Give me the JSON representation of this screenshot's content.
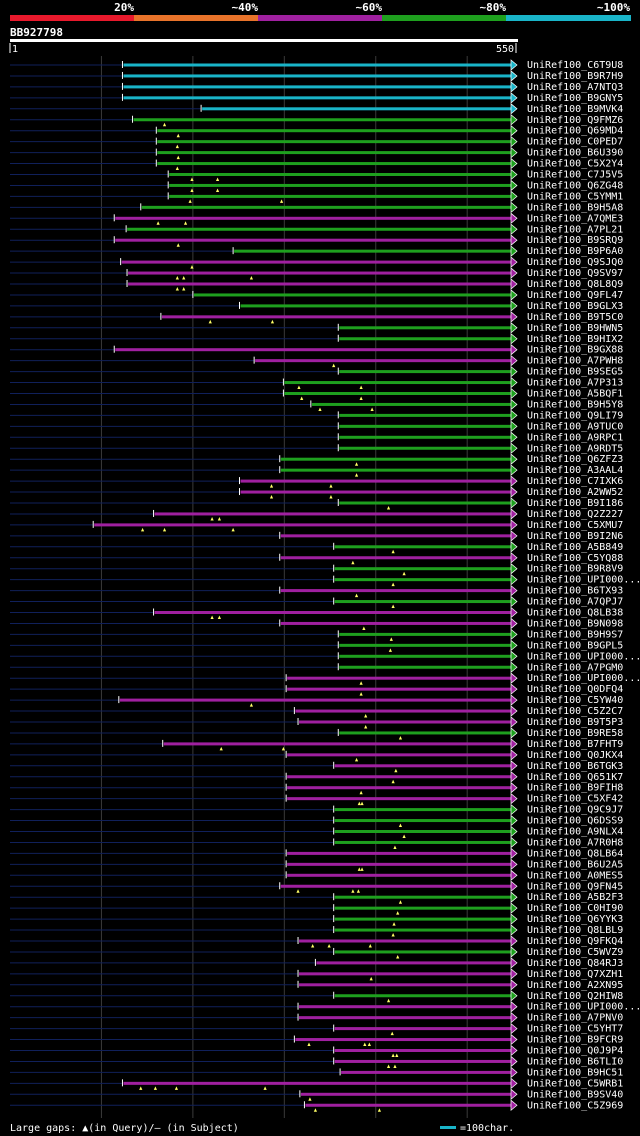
{
  "chart_data": {
    "type": "alignment-overview",
    "query_id": "BB927798",
    "query_start": "1",
    "query_end": "550",
    "query_length": 550,
    "identity_legend": [
      {
        "label": "20%",
        "color": "#e8192c"
      },
      {
        "label": "~40%",
        "color": "#e8732a"
      },
      {
        "label": "~60%",
        "color": "#a020a0"
      },
      {
        "label": "~80%",
        "color": "#1ea01e"
      },
      {
        "label": "~100%",
        "color": "#19b4c8"
      }
    ],
    "footer_legend": "Large gaps: ▲(in Query)/— (in Subject)",
    "scale_label": "=100char.",
    "hits": [
      {
        "name": "UniRef100_C6T9U8",
        "start": 124,
        "end": 550,
        "identity": "~100%",
        "gaps": []
      },
      {
        "name": "UniRef100_B9R7H9",
        "start": 124,
        "end": 550,
        "identity": "~100%",
        "gaps": []
      },
      {
        "name": "UniRef100_A7NTQ3",
        "start": 124,
        "end": 550,
        "identity": "~100%",
        "gaps": []
      },
      {
        "name": "UniRef100_B9GNY5",
        "start": 124,
        "end": 550,
        "identity": "~100%",
        "gaps": []
      },
      {
        "name": "UniRef100_B9MVK4",
        "start": 210,
        "end": 550,
        "identity": "~100%",
        "gaps": []
      },
      {
        "name": "UniRef100_Q9FMZ6",
        "start": 135,
        "end": 550,
        "identity": "~80%",
        "gaps": [
          170
        ]
      },
      {
        "name": "UniRef100_Q69MD4",
        "start": 161,
        "end": 550,
        "identity": "~80%",
        "gaps": [
          185
        ]
      },
      {
        "name": "UniRef100_C0PED7",
        "start": 161,
        "end": 550,
        "identity": "~80%",
        "gaps": [
          184
        ]
      },
      {
        "name": "UniRef100_B6U390",
        "start": 161,
        "end": 550,
        "identity": "~80%",
        "gaps": [
          185
        ]
      },
      {
        "name": "UniRef100_C5X2Y4",
        "start": 161,
        "end": 550,
        "identity": "~80%",
        "gaps": [
          184
        ]
      },
      {
        "name": "UniRef100_C7J5V5",
        "start": 174,
        "end": 550,
        "identity": "~80%",
        "gaps": [
          200,
          228
        ]
      },
      {
        "name": "UniRef100_Q6ZG48",
        "start": 174,
        "end": 550,
        "identity": "~80%",
        "gaps": [
          200,
          228
        ]
      },
      {
        "name": "UniRef100_C5YMM1",
        "start": 174,
        "end": 550,
        "identity": "~80%",
        "gaps": [
          198,
          298
        ]
      },
      {
        "name": "UniRef100_B9H5A8",
        "start": 144,
        "end": 550,
        "identity": "~80%",
        "gaps": []
      },
      {
        "name": "UniRef100_A7QME3",
        "start": 115,
        "end": 550,
        "identity": "~60%",
        "gaps": [
          163,
          193
        ]
      },
      {
        "name": "UniRef100_A7PL21",
        "start": 128,
        "end": 550,
        "identity": "~80%",
        "gaps": []
      },
      {
        "name": "UniRef100_B9SRQ9",
        "start": 115,
        "end": 550,
        "identity": "~60%",
        "gaps": [
          185
        ]
      },
      {
        "name": "UniRef100_B9P6A0",
        "start": 245,
        "end": 550,
        "identity": "~80%",
        "gaps": []
      },
      {
        "name": "UniRef100_Q9SJQ0",
        "start": 122,
        "end": 550,
        "identity": "~60%",
        "gaps": [
          200
        ]
      },
      {
        "name": "UniRef100_Q9SV97",
        "start": 129,
        "end": 550,
        "identity": "~60%",
        "gaps": [
          184,
          191,
          265
        ]
      },
      {
        "name": "UniRef100_Q8L8Q9",
        "start": 129,
        "end": 550,
        "identity": "~60%",
        "gaps": [
          184,
          191
        ]
      },
      {
        "name": "UniRef100_Q9FL47",
        "start": 201,
        "end": 550,
        "identity": "~80%",
        "gaps": []
      },
      {
        "name": "UniRef100_B9GLX3",
        "start": 252,
        "end": 550,
        "identity": "~80%",
        "gaps": []
      },
      {
        "name": "UniRef100_B9T5C0",
        "start": 166,
        "end": 550,
        "identity": "~60%",
        "gaps": [
          220,
          288
        ]
      },
      {
        "name": "UniRef100_B9HWN5",
        "start": 360,
        "end": 550,
        "identity": "~80%",
        "gaps": []
      },
      {
        "name": "UniRef100_B9HIX2",
        "start": 360,
        "end": 550,
        "identity": "~80%",
        "gaps": []
      },
      {
        "name": "UniRef100_B9GX88",
        "start": 115,
        "end": 550,
        "identity": "~60%",
        "gaps": []
      },
      {
        "name": "UniRef100_A7PWH8",
        "start": 268,
        "end": 550,
        "identity": "~60%",
        "gaps": [
          355
        ]
      },
      {
        "name": "UniRef100_B9SEG5",
        "start": 360,
        "end": 550,
        "identity": "~80%",
        "gaps": []
      },
      {
        "name": "UniRef100_A7P313",
        "start": 300,
        "end": 550,
        "identity": "~80%",
        "gaps": [
          317,
          385
        ]
      },
      {
        "name": "UniRef100_A5BQF1",
        "start": 300,
        "end": 550,
        "identity": "~80%",
        "gaps": [
          320,
          385
        ]
      },
      {
        "name": "UniRef100_B9H5Y8",
        "start": 330,
        "end": 550,
        "identity": "~80%",
        "gaps": [
          340,
          397
        ]
      },
      {
        "name": "UniRef100_Q9LI79",
        "start": 360,
        "end": 550,
        "identity": "~80%",
        "gaps": []
      },
      {
        "name": "UniRef100_A9TUC0",
        "start": 360,
        "end": 550,
        "identity": "~80%",
        "gaps": []
      },
      {
        "name": "UniRef100_A9RPC1",
        "start": 360,
        "end": 550,
        "identity": "~80%",
        "gaps": []
      },
      {
        "name": "UniRef100_A9RDT5",
        "start": 360,
        "end": 550,
        "identity": "~80%",
        "gaps": []
      },
      {
        "name": "UniRef100_Q6ZFZ3",
        "start": 296,
        "end": 550,
        "identity": "~80%",
        "gaps": [
          380
        ]
      },
      {
        "name": "UniRef100_A3AAL4",
        "start": 296,
        "end": 550,
        "identity": "~80%",
        "gaps": [
          380
        ]
      },
      {
        "name": "UniRef100_C7IXK6",
        "start": 252,
        "end": 550,
        "identity": "~60%",
        "gaps": [
          287,
          352
        ]
      },
      {
        "name": "UniRef100_A2WW52",
        "start": 252,
        "end": 550,
        "identity": "~60%",
        "gaps": [
          287,
          352
        ]
      },
      {
        "name": "UniRef100_B9I186",
        "start": 360,
        "end": 550,
        "identity": "~80%",
        "gaps": [
          415
        ]
      },
      {
        "name": "UniRef100_Q2Z227",
        "start": 158,
        "end": 550,
        "identity": "~60%",
        "gaps": [
          222,
          230
        ]
      },
      {
        "name": "UniRef100_C5XMU7",
        "start": 92,
        "end": 550,
        "identity": "~60%",
        "gaps": [
          146,
          170,
          245
        ]
      },
      {
        "name": "UniRef100_B9I2N6",
        "start": 296,
        "end": 550,
        "identity": "~60%",
        "gaps": []
      },
      {
        "name": "UniRef100_A5B849",
        "start": 355,
        "end": 550,
        "identity": "~80%",
        "gaps": [
          420
        ]
      },
      {
        "name": "UniRef100_C5YQ88",
        "start": 296,
        "end": 550,
        "identity": "~60%",
        "gaps": [
          376
        ]
      },
      {
        "name": "UniRef100_B9R8V9",
        "start": 355,
        "end": 550,
        "identity": "~80%",
        "gaps": [
          432
        ]
      },
      {
        "name": "UniRef100_UPI000...",
        "start": 355,
        "end": 550,
        "identity": "~80%",
        "gaps": [
          420
        ]
      },
      {
        "name": "UniRef100_B6TX93",
        "start": 296,
        "end": 550,
        "identity": "~60%",
        "gaps": [
          380
        ]
      },
      {
        "name": "UniRef100_A7QPJ7",
        "start": 355,
        "end": 550,
        "identity": "~80%",
        "gaps": [
          420
        ]
      },
      {
        "name": "UniRef100_Q8LB38",
        "start": 158,
        "end": 550,
        "identity": "~60%",
        "gaps": [
          222,
          230
        ]
      },
      {
        "name": "UniRef100_B9N098",
        "start": 296,
        "end": 550,
        "identity": "~60%",
        "gaps": [
          388
        ]
      },
      {
        "name": "UniRef100_B9H9S7",
        "start": 360,
        "end": 550,
        "identity": "~80%",
        "gaps": [
          418
        ]
      },
      {
        "name": "UniRef100_B9GPL5",
        "start": 360,
        "end": 550,
        "identity": "~80%",
        "gaps": [
          417
        ]
      },
      {
        "name": "UniRef100_UPI000...",
        "start": 360,
        "end": 550,
        "identity": "~80%",
        "gaps": []
      },
      {
        "name": "UniRef100_A7PGM0",
        "start": 360,
        "end": 550,
        "identity": "~80%",
        "gaps": []
      },
      {
        "name": "UniRef100_UPI000...",
        "start": 303,
        "end": 550,
        "identity": "~60%",
        "gaps": [
          385
        ]
      },
      {
        "name": "UniRef100_Q0DFQ4",
        "start": 303,
        "end": 550,
        "identity": "~60%",
        "gaps": [
          385
        ]
      },
      {
        "name": "UniRef100_C5YW40",
        "start": 120,
        "end": 550,
        "identity": "~60%",
        "gaps": [
          265
        ]
      },
      {
        "name": "UniRef100_C5Z2C7",
        "start": 312,
        "end": 550,
        "identity": "~60%",
        "gaps": [
          390
        ]
      },
      {
        "name": "UniRef100_B9T5P3",
        "start": 316,
        "end": 550,
        "identity": "~60%",
        "gaps": [
          390
        ]
      },
      {
        "name": "UniRef100_B9RE58",
        "start": 360,
        "end": 550,
        "identity": "~80%",
        "gaps": [
          428
        ]
      },
      {
        "name": "UniRef100_B7FHT9",
        "start": 168,
        "end": 550,
        "identity": "~60%",
        "gaps": [
          232,
          300
        ]
      },
      {
        "name": "UniRef100_Q0JKX4",
        "start": 303,
        "end": 550,
        "identity": "~60%",
        "gaps": [
          380
        ]
      },
      {
        "name": "UniRef100_B6TGK3",
        "start": 355,
        "end": 550,
        "identity": "~60%",
        "gaps": [
          423
        ]
      },
      {
        "name": "UniRef100_Q651K7",
        "start": 303,
        "end": 550,
        "identity": "~60%",
        "gaps": [
          420
        ]
      },
      {
        "name": "UniRef100_B9FIH8",
        "start": 303,
        "end": 550,
        "identity": "~60%",
        "gaps": [
          385
        ]
      },
      {
        "name": "UniRef100_C5XF42",
        "start": 303,
        "end": 550,
        "identity": "~60%",
        "gaps": [
          383,
          386
        ]
      },
      {
        "name": "UniRef100_Q9C9J7",
        "start": 355,
        "end": 550,
        "identity": "~80%",
        "gaps": []
      },
      {
        "name": "UniRef100_Q6DSS9",
        "start": 355,
        "end": 550,
        "identity": "~80%",
        "gaps": [
          428
        ]
      },
      {
        "name": "UniRef100_A9NLX4",
        "start": 355,
        "end": 550,
        "identity": "~80%",
        "gaps": [
          432
        ]
      },
      {
        "name": "UniRef100_A7R0H8",
        "start": 355,
        "end": 550,
        "identity": "~80%",
        "gaps": [
          422
        ]
      },
      {
        "name": "UniRef100_Q8LB64",
        "start": 303,
        "end": 550,
        "identity": "~60%",
        "gaps": []
      },
      {
        "name": "UniRef100_B6U2A5",
        "start": 303,
        "end": 550,
        "identity": "~60%",
        "gaps": [
          383,
          386
        ]
      },
      {
        "name": "UniRef100_A0MES5",
        "start": 303,
        "end": 550,
        "identity": "~60%",
        "gaps": []
      },
      {
        "name": "UniRef100_Q9FN45",
        "start": 296,
        "end": 550,
        "identity": "~60%",
        "gaps": [
          316,
          376,
          382
        ]
      },
      {
        "name": "UniRef100_A5B2F3",
        "start": 355,
        "end": 550,
        "identity": "~80%",
        "gaps": [
          428
        ]
      },
      {
        "name": "UniRef100_C0HI90",
        "start": 355,
        "end": 550,
        "identity": "~80%",
        "gaps": [
          425
        ]
      },
      {
        "name": "UniRef100_Q6YYK3",
        "start": 355,
        "end": 550,
        "identity": "~80%",
        "gaps": [
          421
        ]
      },
      {
        "name": "UniRef100_Q8LBL9",
        "start": 355,
        "end": 550,
        "identity": "~80%",
        "gaps": [
          420
        ]
      },
      {
        "name": "UniRef100_Q9FKQ4",
        "start": 316,
        "end": 550,
        "identity": "~60%",
        "gaps": [
          332,
          350,
          395
        ]
      },
      {
        "name": "UniRef100_C5WVZ9",
        "start": 355,
        "end": 550,
        "identity": "~80%",
        "gaps": [
          425
        ]
      },
      {
        "name": "UniRef100_Q84RJ3",
        "start": 335,
        "end": 550,
        "identity": "~60%",
        "gaps": []
      },
      {
        "name": "UniRef100_Q7XZH1",
        "start": 316,
        "end": 550,
        "identity": "~60%",
        "gaps": [
          396
        ]
      },
      {
        "name": "UniRef100_A2XN95",
        "start": 316,
        "end": 550,
        "identity": "~60%",
        "gaps": []
      },
      {
        "name": "UniRef100_Q2HIW8",
        "start": 355,
        "end": 550,
        "identity": "~80%",
        "gaps": [
          415
        ]
      },
      {
        "name": "UniRef100_UPI000...",
        "start": 316,
        "end": 550,
        "identity": "~60%",
        "gaps": []
      },
      {
        "name": "UniRef100_A7PNV0",
        "start": 316,
        "end": 550,
        "identity": "~60%",
        "gaps": []
      },
      {
        "name": "UniRef100_C5YHT7",
        "start": 355,
        "end": 550,
        "identity": "~60%",
        "gaps": [
          419
        ]
      },
      {
        "name": "UniRef100_B9FCR9",
        "start": 312,
        "end": 550,
        "identity": "~60%",
        "gaps": [
          328,
          389,
          394
        ]
      },
      {
        "name": "UniRef100_Q0J9P4",
        "start": 355,
        "end": 550,
        "identity": "~60%",
        "gaps": [
          420,
          424
        ]
      },
      {
        "name": "UniRef100_B6TLI0",
        "start": 355,
        "end": 550,
        "identity": "~60%",
        "gaps": [
          415,
          422
        ]
      },
      {
        "name": "UniRef100_B9HC51",
        "start": 362,
        "end": 550,
        "identity": "~60%",
        "gaps": []
      },
      {
        "name": "UniRef100_C5WRB1",
        "start": 124,
        "end": 550,
        "identity": "~60%",
        "gaps": [
          144,
          160,
          183,
          280
        ]
      },
      {
        "name": "UniRef100_B9SV40",
        "start": 318,
        "end": 550,
        "identity": "~60%",
        "gaps": [
          329
        ]
      },
      {
        "name": "UniRef100_C5Z969",
        "start": 323,
        "end": 550,
        "identity": "~60%",
        "gaps": [
          335,
          405
        ]
      }
    ]
  }
}
